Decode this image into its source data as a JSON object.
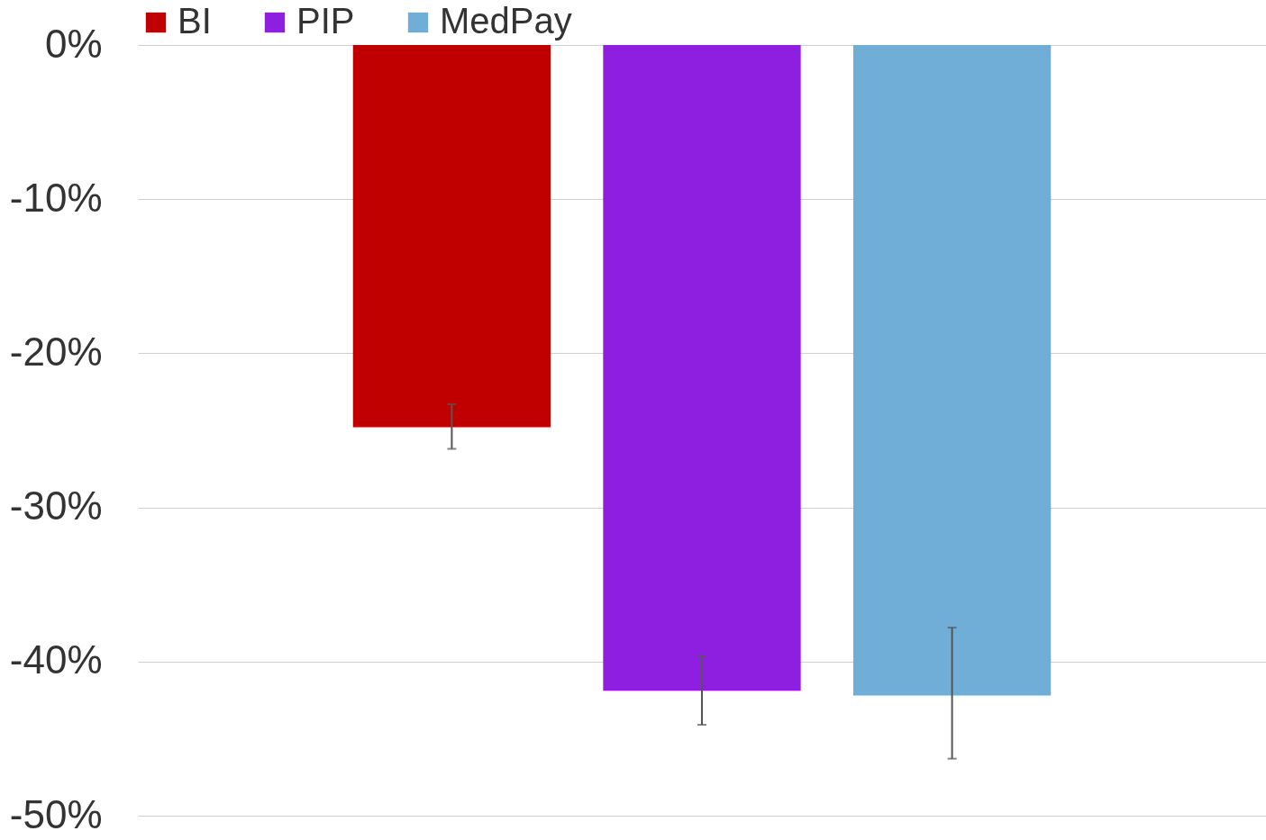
{
  "chart_data": {
    "type": "bar",
    "categories": [
      null
    ],
    "series": [
      {
        "name": "BI",
        "color": "#c00000",
        "values": [
          -24.8
        ],
        "errors": [
          [
            -26.2,
            -23.3
          ]
        ]
      },
      {
        "name": "PIP",
        "color": "#8f1fe0",
        "values": [
          -41.9
        ],
        "errors": [
          [
            -44.1,
            -39.6
          ]
        ]
      },
      {
        "name": "MedPay",
        "color": "#70aed8",
        "values": [
          -42.2
        ],
        "errors": [
          [
            -46.3,
            -37.8
          ]
        ]
      }
    ],
    "ylim": [
      -50,
      0
    ],
    "yticks": [
      {
        "value": 0,
        "label": "0%"
      },
      {
        "value": -10,
        "label": "-10%"
      },
      {
        "value": -20,
        "label": "-20%"
      },
      {
        "value": -30,
        "label": "-30%"
      },
      {
        "value": -40,
        "label": "-40%"
      },
      {
        "value": -50,
        "label": "-50%"
      }
    ],
    "grid": "y",
    "legend": "top"
  }
}
